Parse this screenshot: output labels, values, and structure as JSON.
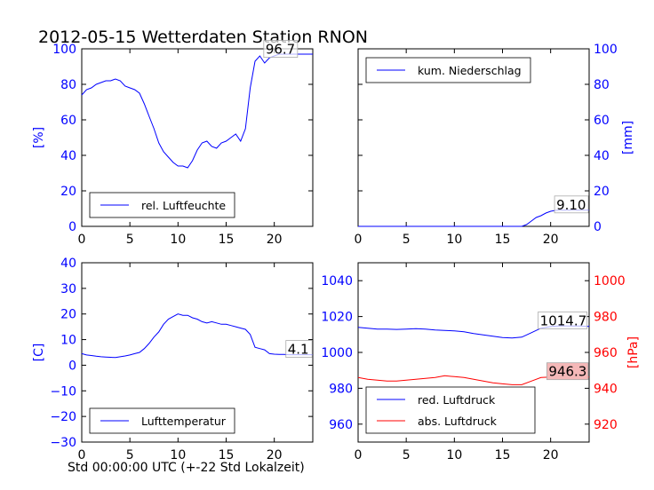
{
  "figure": {
    "title": "2012-05-15 Wetterdaten Station RNON"
  },
  "colors": {
    "blue": "#0000ff",
    "red": "#ff0000",
    "black": "#000000",
    "value_box_red_bg": "#f5b8b8"
  },
  "chart_data": [
    {
      "type": "line",
      "name": "humidity-panel",
      "ylabel": "[%]",
      "ylabel_side": "left",
      "ylabel_color": "#0000ff",
      "xlim": [
        0,
        24
      ],
      "ylim": [
        0,
        100
      ],
      "xticks": [
        "0",
        "5",
        "10",
        "15",
        "20"
      ],
      "yticks": [
        "0",
        "20",
        "40",
        "60",
        "80",
        "100"
      ],
      "ytick_color": "#0000ff",
      "value_label": "96.7",
      "value_x": 19.0,
      "value_y": 96.7,
      "legend": {
        "position": "lower-left"
      },
      "series": [
        {
          "name": "rel. Luftfeuchte",
          "color": "#0000ff",
          "x": [
            0,
            0.5,
            1,
            1.5,
            2,
            2.5,
            3,
            3.5,
            4,
            4.5,
            5,
            5.5,
            6,
            6.5,
            7,
            7.5,
            8,
            8.5,
            9,
            9.5,
            10,
            10.5,
            11,
            11.5,
            12,
            12.5,
            13,
            13.5,
            14,
            14.5,
            15,
            15.5,
            16,
            16.5,
            17,
            17.5,
            18,
            18.5,
            19,
            19.5,
            20,
            20.5,
            21,
            21.5,
            22,
            22.5,
            23,
            23.5,
            24
          ],
          "y": [
            74,
            77,
            78,
            80,
            81,
            82,
            82,
            83,
            82,
            79,
            78,
            77,
            75,
            69,
            62,
            55,
            47,
            42,
            39,
            36,
            34,
            34,
            33,
            37,
            43,
            47,
            48,
            45,
            44,
            47,
            48,
            50,
            52,
            48,
            55,
            78,
            93,
            96,
            92,
            95,
            96,
            97,
            97,
            97,
            97,
            97,
            97,
            97,
            97
          ]
        }
      ]
    },
    {
      "type": "line",
      "name": "precipitation-panel",
      "ylabel": "[mm]",
      "ylabel_side": "right",
      "ylabel_color": "#0000ff",
      "xlim": [
        0,
        24
      ],
      "ylim": [
        0,
        100
      ],
      "xticks": [
        "0",
        "5",
        "10",
        "15",
        "20"
      ],
      "yticks": [
        "0",
        "20",
        "40",
        "60",
        "80",
        "100"
      ],
      "ytick_color": "#0000ff",
      "value_label": "9.10",
      "value_x": 20.5,
      "value_y": 9.1,
      "legend": {
        "position": "upper-left"
      },
      "series": [
        {
          "name": "kum. Niederschlag",
          "color": "#0000ff",
          "x": [
            0,
            17,
            17.5,
            18,
            18.5,
            19,
            19.5,
            20,
            20.5,
            21,
            22,
            23,
            24
          ],
          "y": [
            0,
            0,
            1,
            3,
            5,
            6,
            7.5,
            8.5,
            9,
            9.1,
            9.1,
            9.1,
            9.1
          ]
        }
      ]
    },
    {
      "type": "line",
      "name": "temperature-panel",
      "ylabel": "[C]",
      "ylabel_side": "left",
      "ylabel_color": "#0000ff",
      "xlabel": "Std 00:00:00 UTC (+-22 Std Lokalzeit)",
      "xlim": [
        0,
        24
      ],
      "ylim": [
        -30,
        40
      ],
      "xticks": [
        "0",
        "5",
        "10",
        "15",
        "20"
      ],
      "yticks": [
        "−30",
        "−20",
        "−10",
        "0",
        "10",
        "20",
        "30",
        "40"
      ],
      "ytick_color": "#0000ff",
      "value_label": "4.1",
      "value_x": 21.3,
      "value_y": 4.1,
      "legend": {
        "position": "lower-left"
      },
      "series": [
        {
          "name": "Lufttemperatur",
          "color": "#0000ff",
          "x": [
            0,
            0.5,
            1,
            1.5,
            2,
            2.5,
            3,
            3.5,
            4,
            4.5,
            5,
            5.5,
            6,
            6.5,
            7,
            7.5,
            8,
            8.5,
            9,
            9.5,
            10,
            10.5,
            11,
            11.5,
            12,
            12.5,
            13,
            13.5,
            14,
            14.5,
            15,
            15.5,
            16,
            16.5,
            17,
            17.5,
            18,
            18.5,
            19,
            19.5,
            20,
            20.5,
            21,
            21.5,
            22,
            22.5,
            23,
            23.5,
            24
          ],
          "y": [
            4.5,
            4,
            3.8,
            3.5,
            3.3,
            3.2,
            3.1,
            3,
            3.3,
            3.6,
            4,
            4.5,
            5,
            6.5,
            8.5,
            11,
            13,
            16,
            18,
            19,
            20,
            19.5,
            19.5,
            18.5,
            18,
            17,
            16.5,
            17,
            16.5,
            16,
            16,
            15.5,
            15,
            14.5,
            14,
            12,
            7,
            6.5,
            6,
            4.5,
            4.3,
            4.2,
            4.2,
            4.1,
            4.1,
            4.1,
            4.1,
            4.1,
            4.1
          ]
        }
      ]
    },
    {
      "type": "line",
      "name": "pressure-panel",
      "xlim": [
        0,
        24
      ],
      "ylim_left": [
        950,
        1050
      ],
      "ylim_right": [
        910,
        1010
      ],
      "xticks": [
        "0",
        "5",
        "10",
        "15",
        "20"
      ],
      "yticks_left": [
        "960",
        "980",
        "1000",
        "1020",
        "1040"
      ],
      "yticks_right": [
        "920",
        "940",
        "960",
        "980",
        "1000"
      ],
      "ytick_left_color": "#0000ff",
      "ytick_right_color": "#ff0000",
      "ylabel_right": "[hPa]",
      "ylabel_right_color": "#ff0000",
      "value_labels": [
        {
          "text": "1014.7",
          "x": 18.8,
          "y": 1014.7,
          "axis": "left"
        },
        {
          "text": "946.3",
          "x": 19.7,
          "y": 946.3,
          "axis": "right"
        }
      ],
      "legend": {
        "position": "lower-left"
      },
      "series": [
        {
          "name": "red. Luftdruck",
          "color": "#0000ff",
          "axis": "left",
          "x": [
            0,
            1,
            2,
            3,
            4,
            5,
            6,
            7,
            8,
            9,
            10,
            11,
            12,
            13,
            14,
            15,
            16,
            17,
            18,
            19,
            20,
            21,
            22,
            23,
            24
          ],
          "y": [
            1014,
            1013.5,
            1013,
            1013,
            1012.8,
            1013,
            1013.2,
            1013,
            1012.5,
            1012.3,
            1012,
            1011.5,
            1010.5,
            1009.8,
            1009,
            1008.3,
            1008,
            1008.5,
            1011,
            1013.5,
            1014.5,
            1014.8,
            1014.7,
            1014.7,
            1014.5
          ]
        },
        {
          "name": "abs. Luftdruck",
          "color": "#ff0000",
          "axis": "right",
          "x": [
            0,
            1,
            2,
            3,
            4,
            5,
            6,
            7,
            8,
            9,
            10,
            11,
            12,
            13,
            14,
            15,
            16,
            17,
            18,
            19,
            20,
            21,
            22,
            23,
            24
          ],
          "y": [
            946,
            945,
            944.5,
            944,
            944,
            944.5,
            945,
            945.5,
            946,
            947,
            946.5,
            946,
            945,
            944,
            943,
            942.5,
            942,
            942,
            944,
            946,
            946.3,
            946.4,
            946.3,
            946.3,
            946.3
          ]
        }
      ]
    }
  ]
}
